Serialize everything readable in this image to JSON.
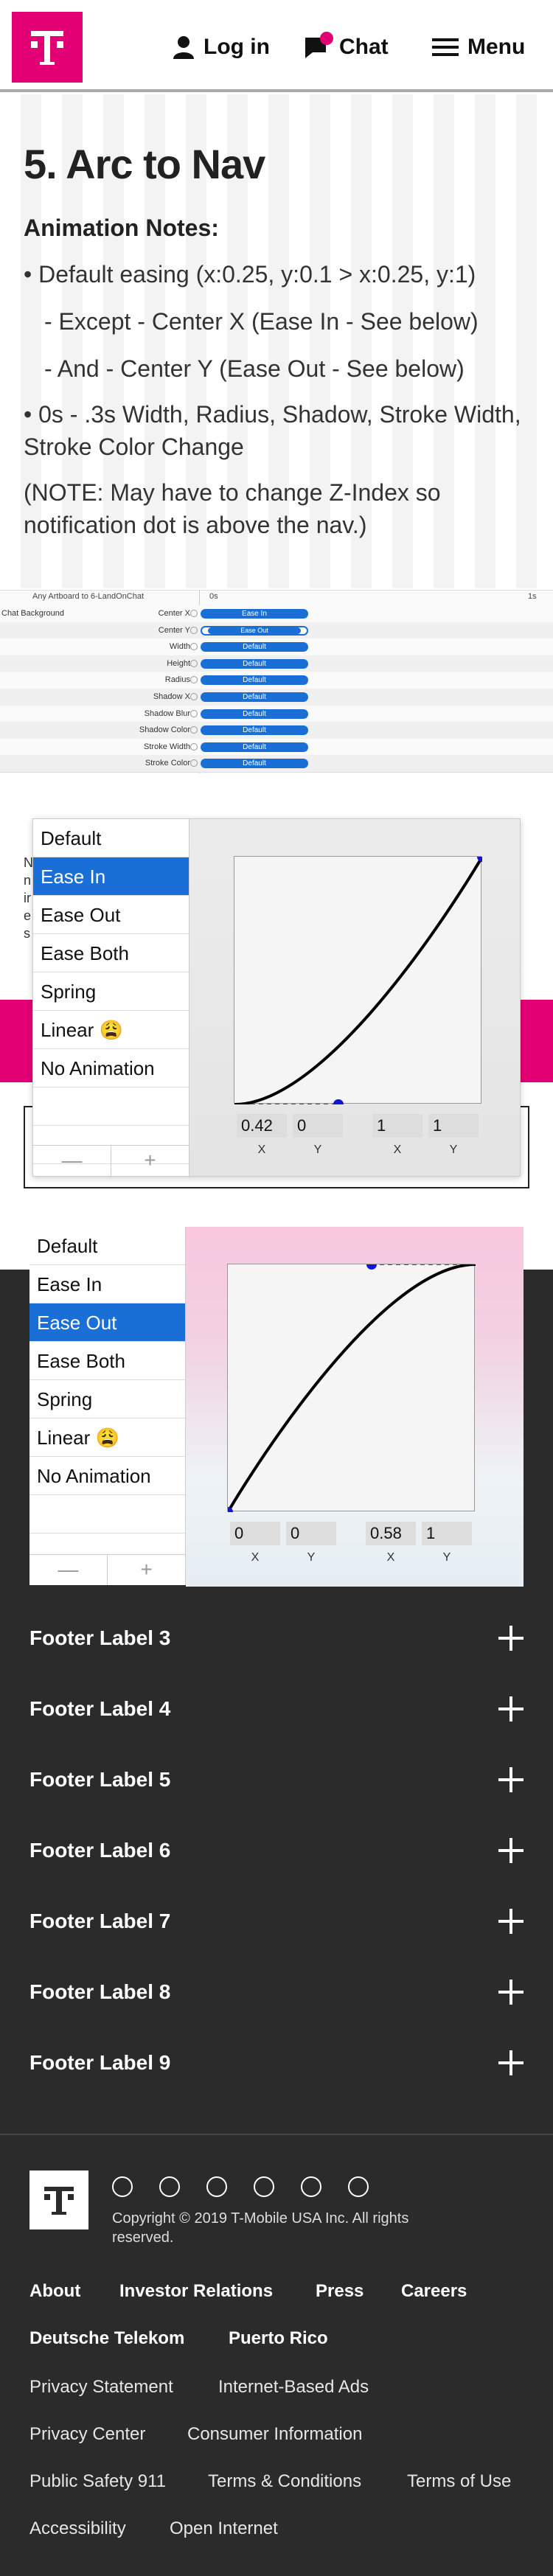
{
  "header": {
    "login_label": "Log in",
    "chat_label": "Chat",
    "menu_label": "Menu",
    "brand_color": "#e20074"
  },
  "notes": {
    "title": "5. Arc to Nav",
    "subtitle": "Animation Notes:",
    "line1": "• Default easing (x:0.25, y:0.1 > x:0.25, y:1)",
    "line2": "- Except - Center X (Ease In - See below)",
    "line3": "- And - Center Y (Ease Out - See below)",
    "line4": "• 0s - .3s Width, Radius, Shadow, Stroke Width, Stroke Color Change",
    "line5": "(NOTE: May have to change Z-Index so notification dot is above the nav.)"
  },
  "timeline": {
    "artboard": "Any Artboard to 6-LandOnChat",
    "start": "0s",
    "end": "1s",
    "layer": "Chat Background",
    "rows": [
      {
        "prop": "Center X",
        "easing": "Ease In"
      },
      {
        "prop": "Center Y",
        "easing": "Ease Out"
      },
      {
        "prop": "Width",
        "easing": "Default"
      },
      {
        "prop": "Height",
        "easing": "Default"
      },
      {
        "prop": "Radius",
        "easing": "Default"
      },
      {
        "prop": "Shadow X",
        "easing": "Default"
      },
      {
        "prop": "Shadow Blur",
        "easing": "Default"
      },
      {
        "prop": "Shadow Color",
        "easing": "Default"
      },
      {
        "prop": "Stroke Width",
        "easing": "Default"
      },
      {
        "prop": "Stroke Color",
        "easing": "Default"
      }
    ]
  },
  "easing_panel_1": {
    "items": [
      "Default",
      "Ease In",
      "Ease Out",
      "Ease Both",
      "Spring",
      "Linear 😩",
      "No Animation"
    ],
    "selected": "Ease In",
    "values": {
      "x1": "0.42",
      "y1": "0",
      "x2": "1",
      "y2": "1"
    },
    "labels": {
      "x": "X",
      "y": "Y"
    },
    "minus": "—",
    "plus": "+"
  },
  "easing_panel_2": {
    "items": [
      "Default",
      "Ease In",
      "Ease Out",
      "Ease Both",
      "Spring",
      "Linear 😩",
      "No Animation"
    ],
    "selected": "Ease Out",
    "values": {
      "x1": "0",
      "y1": "0",
      "x2": "0.58",
      "y2": "1"
    },
    "labels": {
      "x": "X",
      "y": "Y"
    },
    "minus": "—",
    "plus": "+"
  },
  "fragments": {
    "n1": "N",
    "n2": "n",
    "n3": "ir",
    "n4": "e",
    "n5": "s"
  },
  "footer": {
    "accordions": [
      "Footer Label 3",
      "Footer Label 4",
      "Footer Label 5",
      "Footer Label 6",
      "Footer Label 7",
      "Footer Label 8",
      "Footer Label 9"
    ],
    "copyright": "Copyright © 2019 T-Mobile USA Inc. All rights reserved.",
    "links_primary": [
      "About",
      "Investor Relations",
      "Press",
      "Careers",
      "Deutsche Telekom",
      "Puerto Rico"
    ],
    "links_secondary": [
      "Privacy Statement",
      "Internet-Based Ads",
      "Privacy Center",
      "Consumer Information",
      "Public Safety 911",
      "Terms & Conditions",
      "Terms of Use",
      "Accessibility",
      "Open Internet"
    ]
  }
}
